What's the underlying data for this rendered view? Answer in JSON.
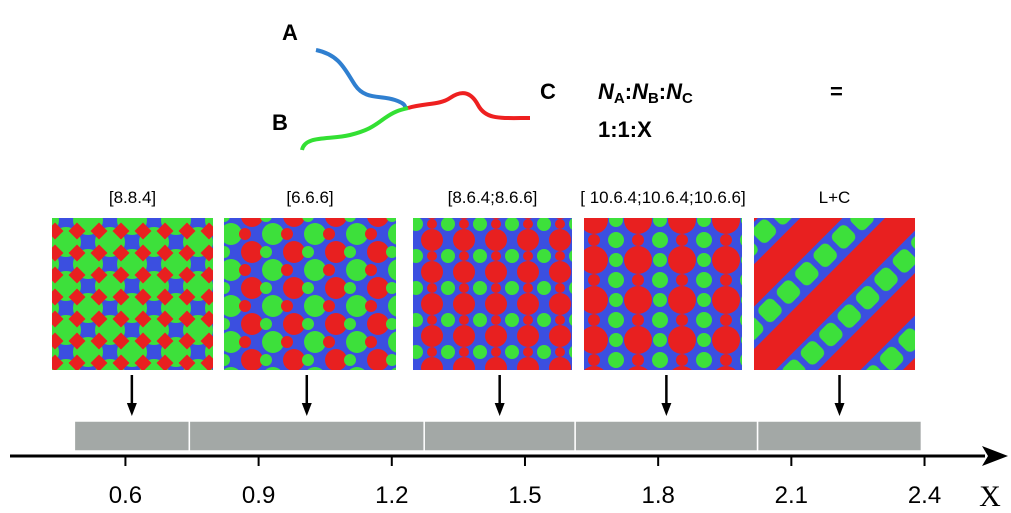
{
  "molecule": {
    "labels": [
      "A",
      "B",
      "C"
    ]
  },
  "formula": {
    "terms": [
      {
        "symbol": "N",
        "sub": "A"
      },
      {
        "symbol": "N",
        "sub": "B"
      },
      {
        "symbol": "N",
        "sub": "C"
      }
    ],
    "separator": ":",
    "equals": "=",
    "composition": "1:1:X"
  },
  "panels": [
    "[8.8.4]",
    "[6.6.6]",
    "[8.6.4;8.6.6]",
    "[ 10.6.4;10.6.4;10.6.6]",
    "L+C"
  ],
  "axis": {
    "label": "X",
    "xlim": [
      0.34,
      2.57
    ],
    "xticks": [
      0.6,
      0.9,
      1.2,
      1.5,
      1.8,
      2.1,
      2.4
    ],
    "phases": [
      {
        "start": 0.485,
        "end": 0.744
      },
      {
        "start": 0.744,
        "end": 1.273
      },
      {
        "start": 1.273,
        "end": 1.613
      },
      {
        "start": 1.613,
        "end": 2.024
      },
      {
        "start": 2.024,
        "end": 2.393
      }
    ],
    "phase_color": "#a3a8a6"
  }
}
